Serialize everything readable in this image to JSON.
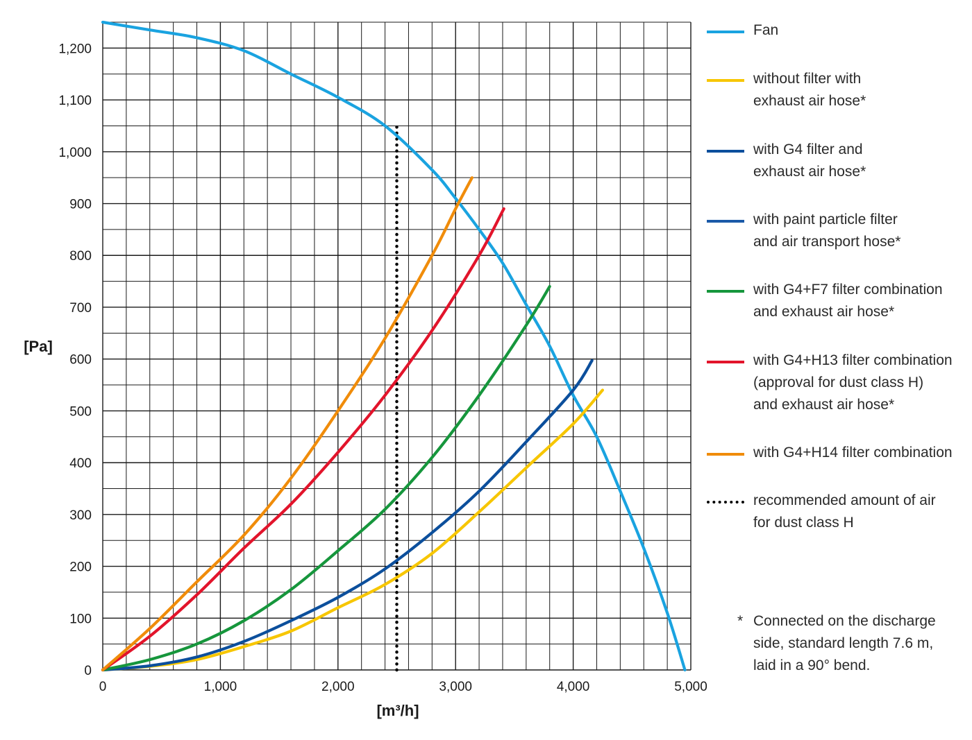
{
  "chart_data": {
    "type": "line",
    "xlabel": "[m³/h]",
    "ylabel": "[Pa]",
    "xlim": [
      0,
      5000
    ],
    "ylim": [
      0,
      1250
    ],
    "x_ticks": [
      0,
      1000,
      2000,
      3000,
      4000,
      5000
    ],
    "x_tick_labels": [
      "0",
      "1,000",
      "2,000",
      "3,000",
      "4,000",
      "5,000"
    ],
    "y_ticks": [
      0,
      100,
      200,
      300,
      400,
      500,
      600,
      700,
      800,
      900,
      1000,
      1100,
      1200
    ],
    "y_tick_labels": [
      "0",
      "100",
      "200",
      "300",
      "400",
      "500",
      "600",
      "700",
      "800",
      "900",
      "1,000",
      "1,100",
      "1,200"
    ],
    "x_minor_step": 200,
    "y_minor_step": 50,
    "grid": true,
    "legend_position": "right",
    "series": [
      {
        "name": "Fan",
        "color": "#1aa3e0",
        "style": "solid",
        "x": [
          0,
          400,
          800,
          1200,
          1600,
          2000,
          2400,
          2800,
          3000,
          3200,
          3400,
          3600,
          3800,
          4000,
          4200,
          4400,
          4600,
          4800,
          4950
        ],
        "y": [
          1250,
          1235,
          1220,
          1195,
          1150,
          1105,
          1050,
          965,
          910,
          850,
          785,
          705,
          625,
          530,
          450,
          345,
          235,
          110,
          0
        ]
      },
      {
        "name": "without filter with\nexhaust air hose*",
        "color": "#f7c600",
        "style": "solid",
        "x": [
          0,
          400,
          800,
          1200,
          1600,
          2000,
          2400,
          2800,
          3200,
          3600,
          4000,
          4250
        ],
        "y": [
          0,
          7,
          20,
          45,
          75,
          120,
          165,
          225,
          305,
          390,
          475,
          540
        ]
      },
      {
        "name": "with G4 filter and\nexhaust air hose*",
        "color": "#0c4f9c",
        "style": "solid",
        "x": [
          0,
          400,
          800,
          1200,
          1600,
          2000,
          2400,
          2800,
          3200,
          3600,
          4000,
          4160
        ],
        "y": [
          0,
          8,
          25,
          55,
          95,
          140,
          195,
          265,
          345,
          440,
          540,
          597
        ]
      },
      {
        "name": "with paint particle filter\nand air transport hose*",
        "color": "#1a5aa8",
        "style": "solid",
        "x": [],
        "y": []
      },
      {
        "name": "with G4+F7 filter combination\nand exhaust air hose*",
        "color": "#16963c",
        "style": "solid",
        "x": [
          0,
          400,
          800,
          1200,
          1600,
          2000,
          2400,
          2800,
          3200,
          3600,
          3800
        ],
        "y": [
          0,
          20,
          50,
          95,
          155,
          230,
          310,
          410,
          530,
          665,
          740
        ]
      },
      {
        "name": "with G4+H13 filter combination\n(approval for dust class H)\nand exhaust air hose*",
        "color": "#e2142b",
        "style": "solid",
        "x": [
          0,
          400,
          800,
          1200,
          1600,
          2000,
          2400,
          2800,
          3200,
          3410
        ],
        "y": [
          0,
          65,
          145,
          235,
          320,
          420,
          530,
          655,
          800,
          890
        ]
      },
      {
        "name": "with G4+H14 filter combination",
        "color": "#f08c0a",
        "style": "solid",
        "x": [
          0,
          400,
          800,
          1200,
          1600,
          2000,
          2400,
          2800,
          3000,
          3140
        ],
        "y": [
          0,
          80,
          170,
          260,
          370,
          500,
          640,
          800,
          890,
          950
        ]
      },
      {
        "name": "recommended amount of air\nfor dust class H",
        "color": "#000000",
        "style": "dotted",
        "x": [
          2500,
          2500
        ],
        "y": [
          0,
          1050
        ]
      }
    ],
    "footnote_star": "*",
    "footnote": "Connected on the discharge\nside, standard length 7.6 m,\nlaid in a 90° bend."
  }
}
